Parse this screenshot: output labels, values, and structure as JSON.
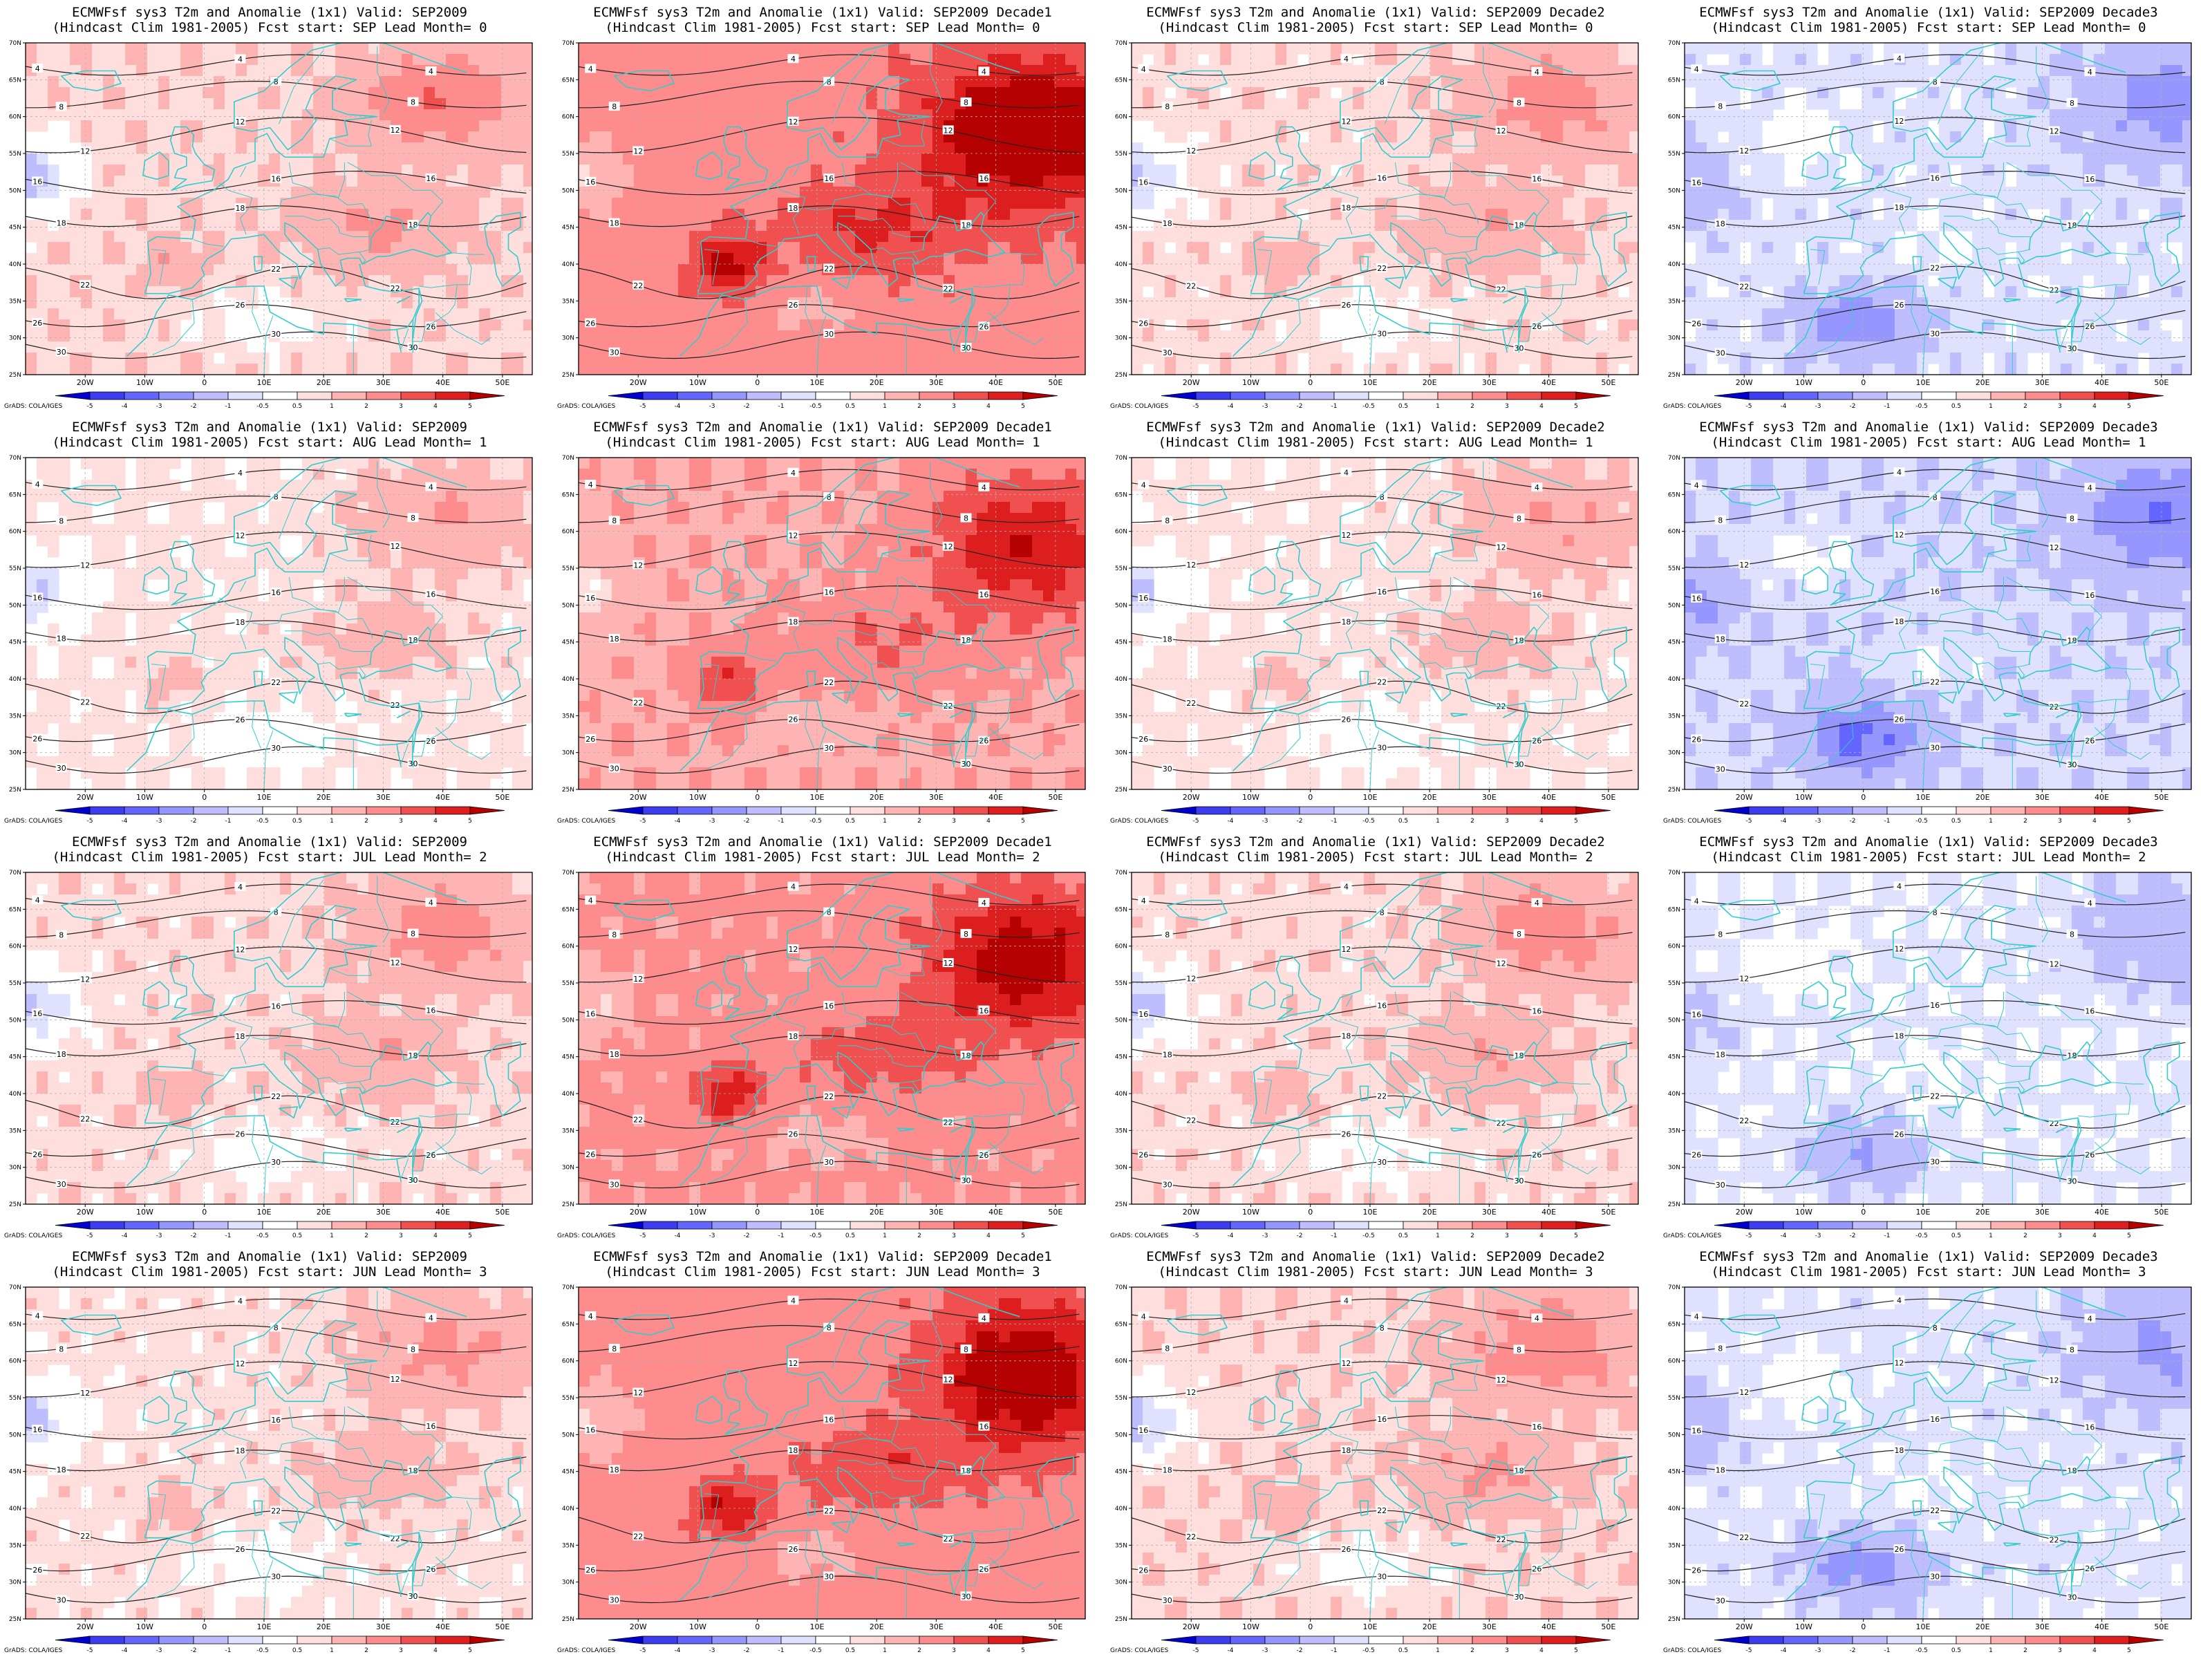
{
  "figure": {
    "layout": "4x4 grid of forecast maps",
    "map": {
      "lon_range": [
        -30,
        55
      ],
      "lat_range": [
        25,
        70
      ],
      "lon_ticks": [
        "20W",
        "10W",
        "0",
        "10E",
        "20E",
        "30E",
        "40E",
        "50E"
      ],
      "lat_ticks": [
        "70N",
        "65N",
        "60N",
        "55N",
        "50N",
        "45N",
        "40N",
        "35N",
        "30N",
        "25N"
      ],
      "coastline_color": "#33cccc",
      "contour_color": "#222222"
    },
    "colorbar": {
      "labels": [
        "-5",
        "-4",
        "-3",
        "-2",
        "-1",
        "-0.5",
        "0.5",
        "1",
        "2",
        "3",
        "4",
        "5"
      ],
      "colors": [
        "#0000d0",
        "#3c3cf0",
        "#6464ff",
        "#9696ff",
        "#bebeff",
        "#e0e0ff",
        "#ffffff",
        "#ffdede",
        "#ffb4b4",
        "#ff8c8c",
        "#f05050",
        "#dc1e1e",
        "#b40000"
      ],
      "credit": "GrADS: COLA/IGES"
    },
    "contour_labels": [
      "4",
      "8",
      "12",
      "16",
      "18",
      "22",
      "26",
      "30"
    ]
  },
  "panels": [
    {
      "title1": "ECMWFsf sys3  T2m and Anomalie (1x1) Valid: SEP2009",
      "title2": "(Hindcast Clim 1981-2005) Fcst start: SEP  Lead Month= 0",
      "field": "A",
      "amp": 1.1
    },
    {
      "title1": "ECMWFsf sys3  T2m and Anomalie (1x1) Valid: SEP2009 Decade1",
      "title2": "(Hindcast Clim 1981-2005) Fcst start: SEP  Lead Month= 0",
      "field": "B",
      "amp": 2.6
    },
    {
      "title1": "ECMWFsf sys3  T2m and Anomalie (1x1) Valid: SEP2009 Decade2",
      "title2": "(Hindcast Clim 1981-2005) Fcst start: SEP  Lead Month= 0",
      "field": "A",
      "amp": 1.0
    },
    {
      "title1": "ECMWFsf sys3  T2m and Anomalie (1x1) Valid: SEP2009 Decade3",
      "title2": "(Hindcast Clim 1981-2005) Fcst start: SEP  Lead Month= 0",
      "field": "C",
      "amp": 1.2
    },
    {
      "title1": "ECMWFsf sys3  T2m and Anomalie (1x1) Valid: SEP2009",
      "title2": "(Hindcast Clim 1981-2005) Fcst start: AUG  Lead Month= 1",
      "field": "A",
      "amp": 0.8
    },
    {
      "title1": "ECMWFsf sys3  T2m and Anomalie (1x1) Valid: SEP2009 Decade1",
      "title2": "(Hindcast Clim 1981-2005) Fcst start: AUG  Lead Month= 1",
      "field": "B",
      "amp": 1.9
    },
    {
      "title1": "ECMWFsf sys3  T2m and Anomalie (1x1) Valid: SEP2009 Decade2",
      "title2": "(Hindcast Clim 1981-2005) Fcst start: AUG  Lead Month= 1",
      "field": "A",
      "amp": 0.8
    },
    {
      "title1": "ECMWFsf sys3  T2m and Anomalie (1x1) Valid: SEP2009 Decade3",
      "title2": "(Hindcast Clim 1981-2005) Fcst start: AUG  Lead Month= 1",
      "field": "C",
      "amp": 1.5
    },
    {
      "title1": "ECMWFsf sys3  T2m and Anomalie (1x1) Valid: SEP2009",
      "title2": "(Hindcast Clim 1981-2005) Fcst start: JUL  Lead Month= 2",
      "field": "A",
      "amp": 1.0
    },
    {
      "title1": "ECMWFsf sys3  T2m and Anomalie (1x1) Valid: SEP2009 Decade1",
      "title2": "(Hindcast Clim 1981-2005) Fcst start: JUL  Lead Month= 2",
      "field": "B",
      "amp": 2.2
    },
    {
      "title1": "ECMWFsf sys3  T2m and Anomalie (1x1) Valid: SEP2009 Decade2",
      "title2": "(Hindcast Clim 1981-2005) Fcst start: JUL  Lead Month= 2",
      "field": "A",
      "amp": 1.0
    },
    {
      "title1": "ECMWFsf sys3  T2m and Anomalie (1x1) Valid: SEP2009 Decade3",
      "title2": "(Hindcast Clim 1981-2005) Fcst start: JUL  Lead Month= 2",
      "field": "C",
      "amp": 0.9
    },
    {
      "title1": "ECMWFsf sys3  T2m and Anomalie (1x1) Valid: SEP2009",
      "title2": "(Hindcast Clim 1981-2005) Fcst start: JUN  Lead Month= 3",
      "field": "A",
      "amp": 0.9
    },
    {
      "title1": "ECMWFsf sys3  T2m and Anomalie (1x1) Valid: SEP2009 Decade1",
      "title2": "(Hindcast Clim 1981-2005) Fcst start: JUN  Lead Month= 3",
      "field": "B",
      "amp": 2.4
    },
    {
      "title1": "ECMWFsf sys3  T2m and Anomalie (1x1) Valid: SEP2009 Decade2",
      "title2": "(Hindcast Clim 1981-2005) Fcst start: JUN  Lead Month= 3",
      "field": "A",
      "amp": 1.1
    },
    {
      "title1": "ECMWFsf sys3  T2m and Anomalie (1x1) Valid: SEP2009 Decade3",
      "title2": "(Hindcast Clim 1981-2005) Fcst start: JUN  Lead Month= 3",
      "field": "C",
      "amp": 1.1
    }
  ]
}
